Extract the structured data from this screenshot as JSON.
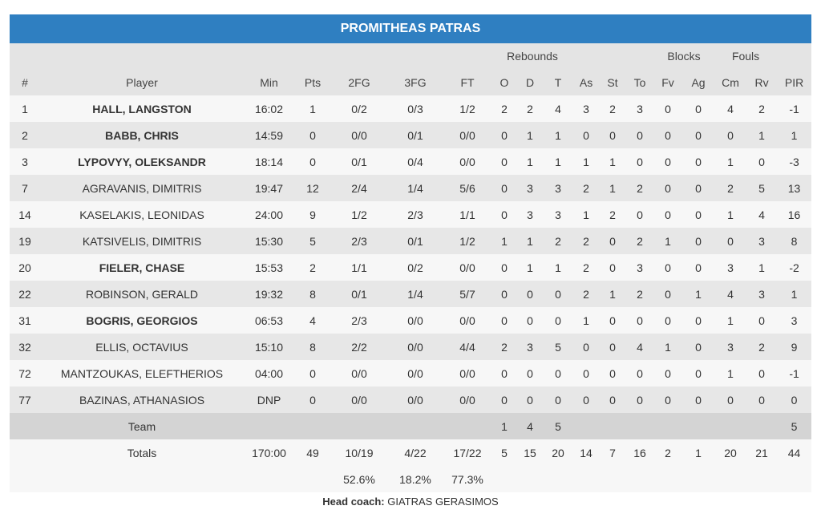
{
  "title": "PROMITHEAS PATRAS",
  "group_headers": {
    "rebounds": "Rebounds",
    "blocks": "Blocks",
    "fouls": "Fouls"
  },
  "columns": [
    "#",
    "Player",
    "Min",
    "Pts",
    "2FG",
    "3FG",
    "FT",
    "O",
    "D",
    "T",
    "As",
    "St",
    "To",
    "Fv",
    "Ag",
    "Cm",
    "Rv",
    "PIR"
  ],
  "players": [
    {
      "no": "1",
      "name": "HALL, LANGSTON",
      "bold": true,
      "min": "16:02",
      "pts": "1",
      "fg2": "0/2",
      "fg3": "0/3",
      "ft": "1/2",
      "o": "2",
      "d": "2",
      "t": "4",
      "as": "3",
      "st": "2",
      "to": "3",
      "fv": "0",
      "ag": "0",
      "cm": "4",
      "rv": "2",
      "pir": "-1"
    },
    {
      "no": "2",
      "name": "BABB, CHRIS",
      "bold": true,
      "min": "14:59",
      "pts": "0",
      "fg2": "0/0",
      "fg3": "0/1",
      "ft": "0/0",
      "o": "0",
      "d": "1",
      "t": "1",
      "as": "0",
      "st": "0",
      "to": "0",
      "fv": "0",
      "ag": "0",
      "cm": "0",
      "rv": "1",
      "pir": "1"
    },
    {
      "no": "3",
      "name": "LYPOVYY, OLEKSANDR",
      "bold": true,
      "min": "18:14",
      "pts": "0",
      "fg2": "0/1",
      "fg3": "0/4",
      "ft": "0/0",
      "o": "0",
      "d": "1",
      "t": "1",
      "as": "1",
      "st": "1",
      "to": "0",
      "fv": "0",
      "ag": "0",
      "cm": "1",
      "rv": "0",
      "pir": "-3"
    },
    {
      "no": "7",
      "name": "AGRAVANIS, DIMITRIS",
      "bold": false,
      "min": "19:47",
      "pts": "12",
      "fg2": "2/4",
      "fg3": "1/4",
      "ft": "5/6",
      "o": "0",
      "d": "3",
      "t": "3",
      "as": "2",
      "st": "1",
      "to": "2",
      "fv": "0",
      "ag": "0",
      "cm": "2",
      "rv": "5",
      "pir": "13"
    },
    {
      "no": "14",
      "name": "KASELAKIS, LEONIDAS",
      "bold": false,
      "min": "24:00",
      "pts": "9",
      "fg2": "1/2",
      "fg3": "2/3",
      "ft": "1/1",
      "o": "0",
      "d": "3",
      "t": "3",
      "as": "1",
      "st": "2",
      "to": "0",
      "fv": "0",
      "ag": "0",
      "cm": "1",
      "rv": "4",
      "pir": "16"
    },
    {
      "no": "19",
      "name": "KATSIVELIS, DIMITRIS",
      "bold": false,
      "min": "15:30",
      "pts": "5",
      "fg2": "2/3",
      "fg3": "0/1",
      "ft": "1/2",
      "o": "1",
      "d": "1",
      "t": "2",
      "as": "2",
      "st": "0",
      "to": "2",
      "fv": "1",
      "ag": "0",
      "cm": "0",
      "rv": "3",
      "pir": "8"
    },
    {
      "no": "20",
      "name": "FIELER, CHASE",
      "bold": true,
      "min": "15:53",
      "pts": "2",
      "fg2": "1/1",
      "fg3": "0/2",
      "ft": "0/0",
      "o": "0",
      "d": "1",
      "t": "1",
      "as": "2",
      "st": "0",
      "to": "3",
      "fv": "0",
      "ag": "0",
      "cm": "3",
      "rv": "1",
      "pir": "-2"
    },
    {
      "no": "22",
      "name": "ROBINSON, GERALD",
      "bold": false,
      "min": "19:32",
      "pts": "8",
      "fg2": "0/1",
      "fg3": "1/4",
      "ft": "5/7",
      "o": "0",
      "d": "0",
      "t": "0",
      "as": "2",
      "st": "1",
      "to": "2",
      "fv": "0",
      "ag": "1",
      "cm": "4",
      "rv": "3",
      "pir": "1"
    },
    {
      "no": "31",
      "name": "BOGRIS, GEORGIOS",
      "bold": true,
      "min": "06:53",
      "pts": "4",
      "fg2": "2/3",
      "fg3": "0/0",
      "ft": "0/0",
      "o": "0",
      "d": "0",
      "t": "0",
      "as": "1",
      "st": "0",
      "to": "0",
      "fv": "0",
      "ag": "0",
      "cm": "1",
      "rv": "0",
      "pir": "3"
    },
    {
      "no": "32",
      "name": "ELLIS, OCTAVIUS",
      "bold": false,
      "min": "15:10",
      "pts": "8",
      "fg2": "2/2",
      "fg3": "0/0",
      "ft": "4/4",
      "o": "2",
      "d": "3",
      "t": "5",
      "as": "0",
      "st": "0",
      "to": "4",
      "fv": "1",
      "ag": "0",
      "cm": "3",
      "rv": "2",
      "pir": "9"
    },
    {
      "no": "72",
      "name": "MANTZOUKAS, ELEFTHERIOS",
      "bold": false,
      "min": "04:00",
      "pts": "0",
      "fg2": "0/0",
      "fg3": "0/0",
      "ft": "0/0",
      "o": "0",
      "d": "0",
      "t": "0",
      "as": "0",
      "st": "0",
      "to": "0",
      "fv": "0",
      "ag": "0",
      "cm": "1",
      "rv": "0",
      "pir": "-1"
    },
    {
      "no": "77",
      "name": "BAZINAS, ATHANASIOS",
      "bold": false,
      "min": "DNP",
      "pts": "0",
      "fg2": "0/0",
      "fg3": "0/0",
      "ft": "0/0",
      "o": "0",
      "d": "0",
      "t": "0",
      "as": "0",
      "st": "0",
      "to": "0",
      "fv": "0",
      "ag": "0",
      "cm": "0",
      "rv": "0",
      "pir": "0"
    }
  ],
  "team": {
    "label": "Team",
    "o": "1",
    "d": "4",
    "t": "5",
    "pir": "5"
  },
  "totals": {
    "label": "Totals",
    "min": "170:00",
    "pts": "49",
    "fg2": "10/19",
    "fg3": "4/22",
    "ft": "17/22",
    "o": "5",
    "d": "15",
    "t": "20",
    "as": "14",
    "st": "7",
    "to": "16",
    "fv": "2",
    "ag": "1",
    "cm": "20",
    "rv": "21",
    "pir": "44"
  },
  "percentages": {
    "fg2": "52.6%",
    "fg3": "18.2%",
    "ft": "77.3%"
  },
  "coach": {
    "label": "Head coach:",
    "name": "GIATRAS GERASIMOS"
  }
}
